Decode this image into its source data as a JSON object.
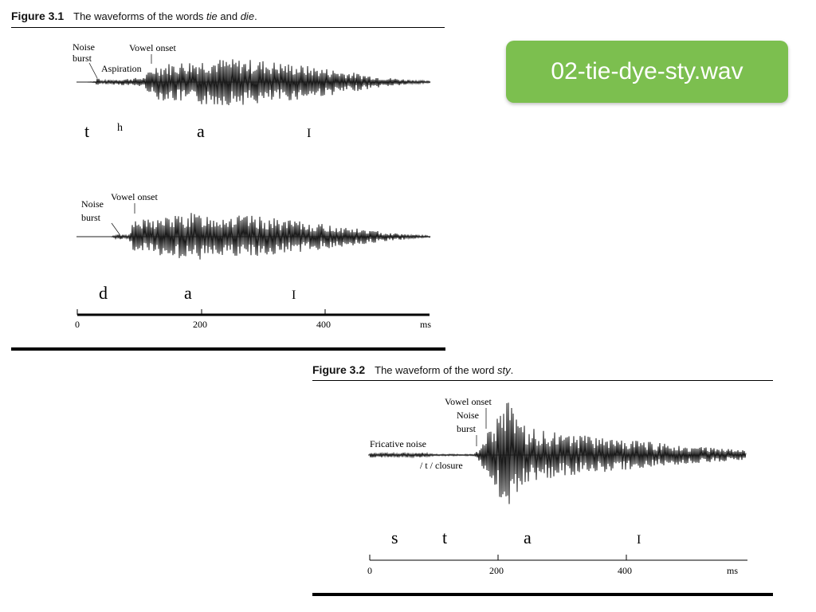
{
  "badge": {
    "filename": "02-tie-dye-sty.wav"
  },
  "figure1": {
    "number": "Figure 3.1",
    "caption_pre": "The waveforms of the words ",
    "caption_word1": "tie",
    "caption_mid": " and ",
    "caption_word2": "die",
    "caption_post": ".",
    "tie": {
      "annotations": [
        "Noise",
        "burst",
        "Vowel onset",
        "Aspiration"
      ],
      "phones": [
        "t",
        "h",
        "a",
        "I"
      ]
    },
    "die": {
      "annotations": [
        "Noise",
        "burst",
        "Vowel onset"
      ],
      "phones": [
        "d",
        "a",
        "I"
      ]
    },
    "axis": {
      "ticks": [
        "0",
        "200",
        "400"
      ],
      "unit": "ms"
    }
  },
  "figure2": {
    "number": "Figure 3.2",
    "caption_pre": "The waveform of the word ",
    "caption_word": "sty",
    "caption_post": ".",
    "annotations": [
      "Vowel onset",
      "Noise",
      "burst",
      "Fricative noise",
      "/ t / closure"
    ],
    "phones": [
      "s",
      "t",
      "a",
      "I"
    ],
    "axis": {
      "ticks": [
        "0",
        "200",
        "400"
      ],
      "unit": "ms"
    }
  }
}
